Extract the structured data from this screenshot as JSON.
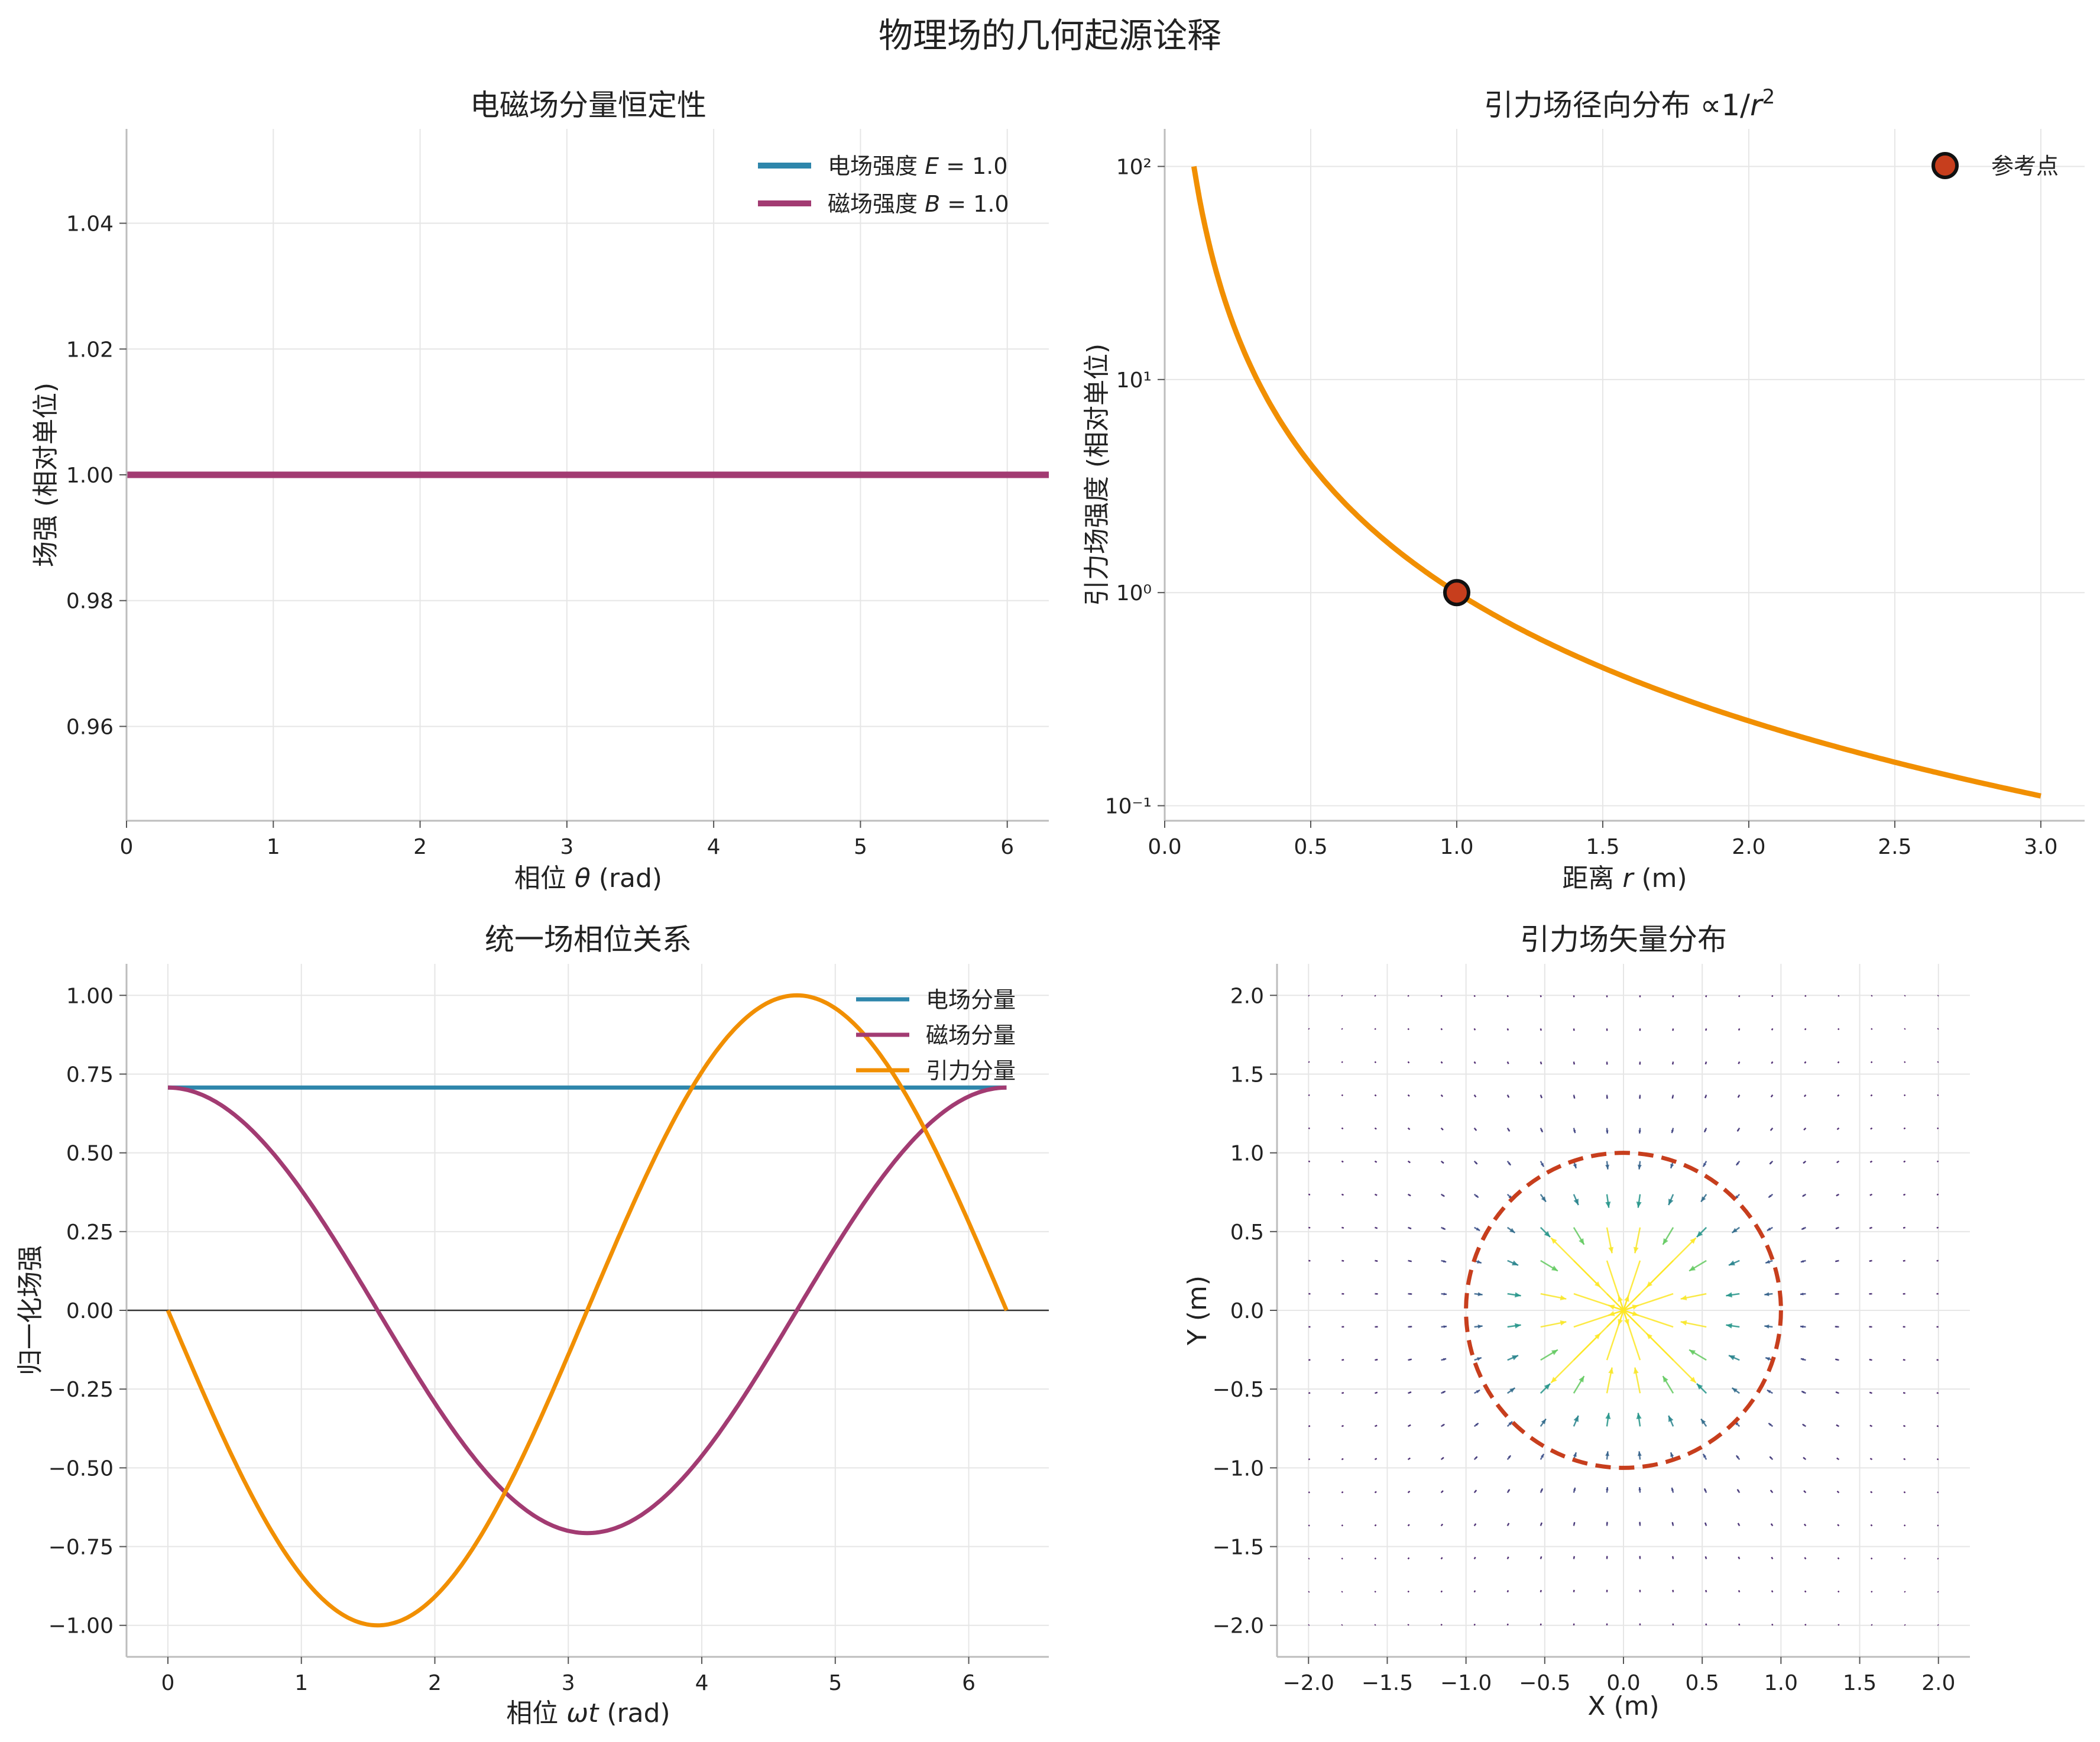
{
  "figure": {
    "title": "物理场的几何起源诠释"
  },
  "colors": {
    "electric": "#2e86ab",
    "magnetic": "#a23b72",
    "gravity": "#f18f01",
    "reference": "#c73e1d"
  },
  "chart_data": [
    {
      "id": "p1",
      "type": "line",
      "title": "电磁场分量恒定性",
      "xlabel": "相位 θ (rad)",
      "ylabel": "场强 (相对单位)",
      "xlim": [
        0,
        6.2832
      ],
      "ylim": [
        0.945,
        1.055
      ],
      "xticks": [
        "0",
        "1",
        "2",
        "3",
        "4",
        "5",
        "6"
      ],
      "yticks": [
        "0.96",
        "0.98",
        "1.00",
        "1.02",
        "1.04"
      ],
      "legend_position": "upper right",
      "grid": true,
      "series": [
        {
          "name": "电场强度 E = 1.0",
          "x": [
            0,
            6.2832
          ],
          "values": [
            1.0,
            1.0
          ],
          "color": "#2e86ab"
        },
        {
          "name": "磁场强度 B = 1.0",
          "x": [
            0,
            6.2832
          ],
          "values": [
            1.0,
            1.0
          ],
          "color": "#a23b72"
        }
      ]
    },
    {
      "id": "p2",
      "type": "line",
      "title": "引力场径向分布 ∝1/r²",
      "xlabel": "距离 r (m)",
      "ylabel": "引力场强度 (相对单位)",
      "yscale": "log",
      "xlim": [
        0,
        3.15
      ],
      "ylim": [
        0.085,
        150
      ],
      "xticks": [
        "0.0",
        "0.5",
        "1.0",
        "1.5",
        "2.0",
        "2.5",
        "3.0"
      ],
      "yticks": [
        "10²",
        "10¹",
        "10⁰",
        "10⁻¹"
      ],
      "legend_position": "upper right",
      "grid": true,
      "series": [
        {
          "name": "",
          "function": "1/r^2",
          "x_range": [
            0.1,
            3.0
          ],
          "color": "#f18f01"
        }
      ],
      "points": [
        {
          "name": "参考点",
          "x": 1.0,
          "y": 1.0,
          "color": "#c73e1d"
        }
      ]
    },
    {
      "id": "p3",
      "type": "line",
      "title": "统一场相位关系",
      "xlabel": "相位 ωt (rad)",
      "ylabel": "归一化场强",
      "xlim": [
        -0.31,
        6.6
      ],
      "ylim": [
        -1.1,
        1.1
      ],
      "xticks": [
        "0",
        "1",
        "2",
        "3",
        "4",
        "5",
        "6"
      ],
      "yticks": [
        "1.00",
        "0.75",
        "0.50",
        "0.25",
        "0.00",
        "−0.25",
        "−0.50",
        "−0.75",
        "−1.00"
      ],
      "legend_position": "upper right",
      "grid": true,
      "series": [
        {
          "name": "电场分量",
          "function": "0.7071",
          "x_range": [
            0,
            6.2832
          ],
          "color": "#2e86ab"
        },
        {
          "name": "磁场分量",
          "function": "0.7071*cos(x)",
          "x_range": [
            0,
            6.2832
          ],
          "color": "#a23b72"
        },
        {
          "name": "引力分量",
          "function": "-sin(x)",
          "x_range": [
            0,
            6.2832
          ],
          "color": "#f18f01"
        }
      ]
    },
    {
      "id": "p4",
      "type": "quiver",
      "title": "引力场矢量分布",
      "xlabel": "X (m)",
      "ylabel": "Y (m)",
      "xlim": [
        -2.2,
        2.2
      ],
      "ylim": [
        -2.2,
        2.2
      ],
      "xticks": [
        "−2.0",
        "−1.5",
        "−1.0",
        "−0.5",
        "0.0",
        "0.5",
        "1.0",
        "1.5",
        "2.0"
      ],
      "yticks": [
        "2.0",
        "1.5",
        "1.0",
        "0.5",
        "0.0",
        "−0.5",
        "−1.0",
        "−1.5",
        "−2.0"
      ],
      "grid": true,
      "vector_field": {
        "grid_range": [
          -2,
          2
        ],
        "n": 20,
        "direction": "toward origin",
        "magnitude": "1/r²"
      },
      "circle": {
        "center": [
          0,
          0
        ],
        "radius": 1.0,
        "style": "dashed",
        "color": "#c73e1d"
      }
    }
  ]
}
